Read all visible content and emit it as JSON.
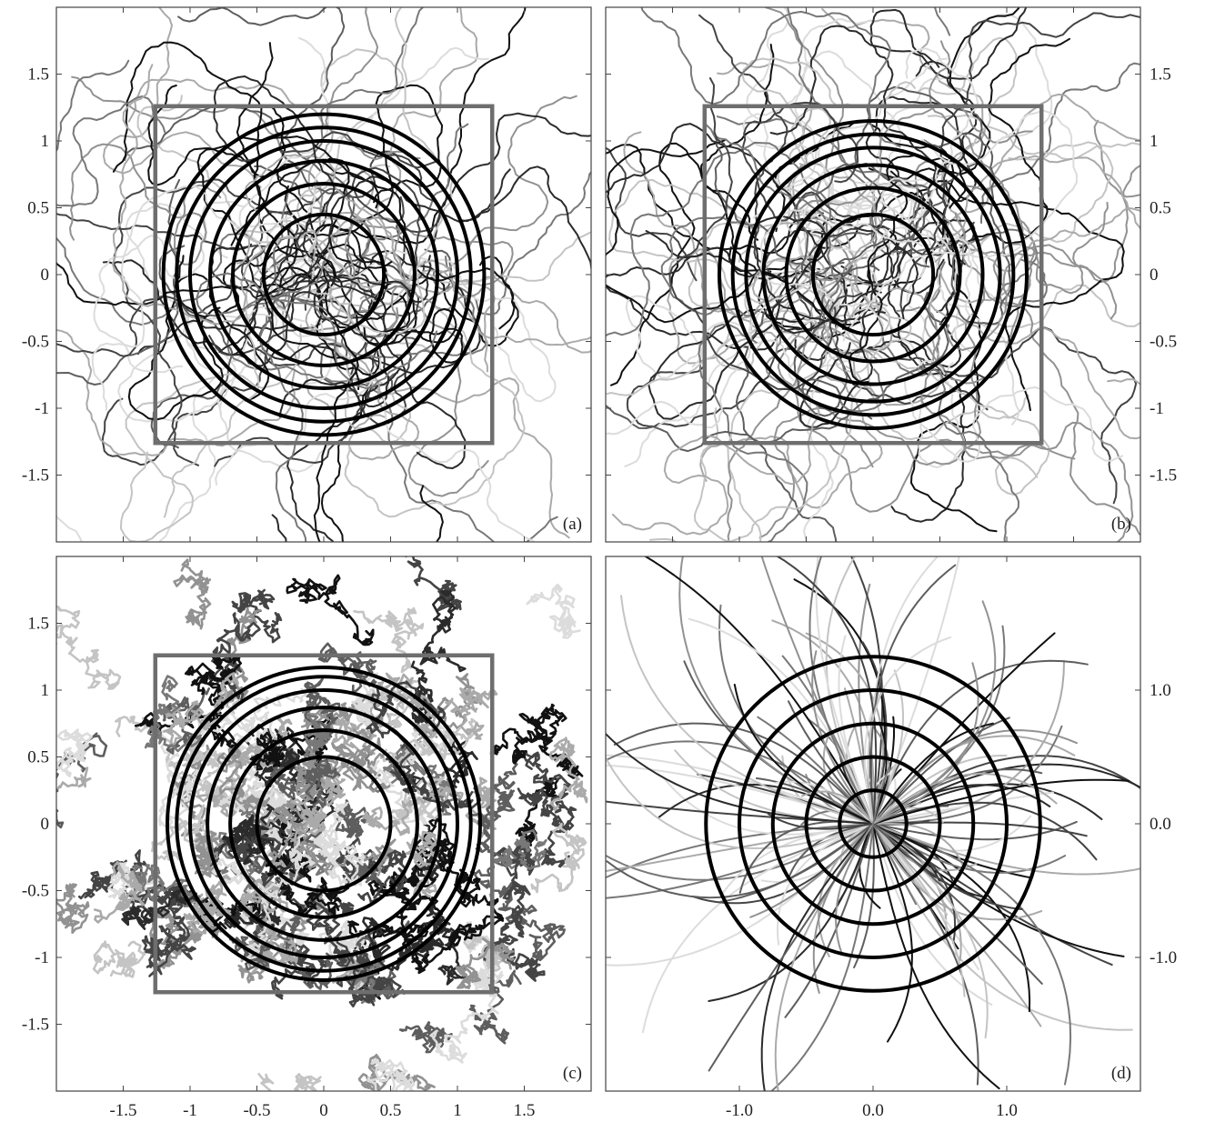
{
  "chart_data": [
    {
      "type": "line",
      "panel_label": "(a)",
      "xlim": [
        -2.0,
        2.0
      ],
      "ylim": [
        -2.0,
        2.0
      ],
      "x_ticks": [
        -1.5,
        -1,
        -0.5,
        0,
        0.5,
        1,
        1.5
      ],
      "y_ticks": [
        -1.5,
        -1,
        -0.5,
        0,
        0.5,
        1,
        1.5
      ],
      "x_tick_labels": [],
      "y_tick_labels": [
        "-1.5",
        "-1",
        "-0.5",
        "0",
        "0.5",
        "1",
        "1.5"
      ],
      "y_label_side": "left",
      "square": {
        "half_width": 1.26
      },
      "circles": {
        "radii": [
          0.45,
          0.68,
          0.85,
          1.0,
          1.1,
          1.2
        ]
      },
      "trajectory_style": "smooth",
      "trajectory_count": 90,
      "trajectory_spread": 1.05,
      "seed": 11,
      "grid": false
    },
    {
      "type": "line",
      "panel_label": "(b)",
      "xlim": [
        -2.0,
        2.0
      ],
      "ylim": [
        -2.0,
        2.0
      ],
      "x_ticks": [
        -1.5,
        -1,
        -0.5,
        0,
        0.5,
        1,
        1.5
      ],
      "y_ticks": [
        -1.5,
        -1,
        -0.5,
        0,
        0.5,
        1,
        1.5
      ],
      "x_tick_labels": [],
      "y_tick_labels": [
        "-1.5",
        "-1",
        "-0.5",
        "0",
        "0.5",
        "1",
        "1.5"
      ],
      "y_label_side": "right",
      "square": {
        "half_width": 1.26
      },
      "circles": {
        "radii": [
          0.45,
          0.65,
          0.82,
          0.95,
          1.05,
          1.15
        ]
      },
      "trajectory_style": "smooth",
      "trajectory_count": 110,
      "trajectory_spread": 1.0,
      "seed": 23,
      "grid": false
    },
    {
      "type": "line",
      "panel_label": "(c)",
      "xlim": [
        -2.0,
        2.0
      ],
      "ylim": [
        -2.0,
        2.0
      ],
      "x_ticks": [
        -1.5,
        -1,
        -0.5,
        0,
        0.5,
        1,
        1.5
      ],
      "y_ticks": [
        -1.5,
        -1,
        -0.5,
        0,
        0.5,
        1,
        1.5
      ],
      "x_tick_labels": [
        "-1.5",
        "-1",
        "-0.5",
        "0",
        "0.5",
        "1",
        "1.5"
      ],
      "y_tick_labels": [
        "-1.5",
        "-1",
        "-0.5",
        "0",
        "0.5",
        "1",
        "1.5"
      ],
      "y_label_side": "left",
      "square": {
        "half_width": 1.26
      },
      "circles": {
        "radii": [
          0.5,
          0.7,
          0.87,
          1.0,
          1.1,
          1.17
        ]
      },
      "trajectory_style": "jagged",
      "trajectory_count": 160,
      "trajectory_spread": 1.5,
      "seed": 37,
      "grid": false
    },
    {
      "type": "line",
      "panel_label": "(d)",
      "xlim": [
        -2.0,
        2.0
      ],
      "ylim": [
        -2.0,
        2.0
      ],
      "x_ticks": [
        -1.0,
        0.0,
        1.0
      ],
      "y_ticks": [
        -1.0,
        0.0,
        1.0
      ],
      "x_tick_labels": [
        "-1.0",
        "0.0",
        "1.0"
      ],
      "y_tick_labels": [
        "-1.0",
        "0.0",
        "1.0"
      ],
      "y_label_side": "right",
      "square": null,
      "circles": {
        "radii": [
          0.25,
          0.5,
          0.75,
          1.0,
          1.25
        ]
      },
      "trajectory_style": "radial",
      "trajectory_count": 150,
      "trajectory_spread": 1.0,
      "seed": 51,
      "grid": false
    }
  ],
  "colors": {
    "trajectory_grays": [
      "#111111",
      "#2b2b2b",
      "#444444",
      "#5e5e5e",
      "#787878",
      "#929292",
      "#aaaaaa",
      "#c4c4c4",
      "#dcdcdc"
    ],
    "circle": "#000000",
    "square": "#6e6e6e",
    "frame": "#444444"
  }
}
